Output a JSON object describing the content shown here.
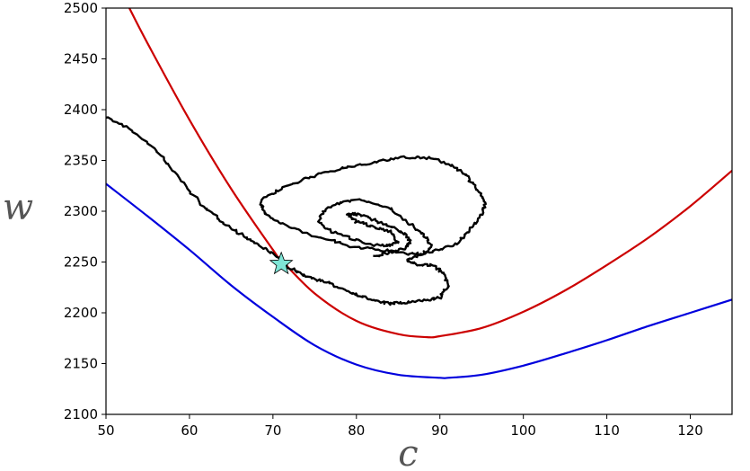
{
  "chart_data": {
    "type": "line",
    "title": "",
    "xlabel": "c",
    "ylabel": "w",
    "xlim": [
      50,
      125
    ],
    "ylim": [
      2100,
      2500
    ],
    "xticks": [
      "50",
      "60",
      "70",
      "80",
      "90",
      "100",
      "110",
      "120"
    ],
    "yticks": [
      "2100",
      "2150",
      "2200",
      "2250",
      "2300",
      "2350",
      "2400",
      "2450",
      "2500"
    ],
    "grid": false,
    "legend": "none",
    "series": [
      {
        "color": "#cc0000",
        "x": [
          52.8,
          55,
          60,
          65,
          70,
          71,
          75,
          80,
          85,
          88.5,
          90,
          95,
          100,
          105,
          110,
          115,
          120,
          125
        ],
        "y": [
          2500,
          2465,
          2390,
          2322,
          2262,
          2252,
          2219,
          2192,
          2179,
          2176,
          2177,
          2185,
          2201,
          2222,
          2247,
          2274,
          2305,
          2340
        ]
      },
      {
        "color": "#0000dd",
        "x": [
          50,
          55,
          60,
          65,
          70,
          75,
          80,
          85,
          90,
          91,
          95,
          100,
          105,
          110,
          115,
          120,
          125
        ],
        "y": [
          2327,
          2295,
          2262,
          2227,
          2196,
          2168,
          2149,
          2139,
          2136,
          2136,
          2139,
          2148,
          2160,
          2173,
          2187,
          2200,
          2213
        ]
      },
      {
        "color": "#000000",
        "x": [
          50,
          53,
          56,
          58,
          60,
          62,
          64,
          66,
          68,
          70,
          72,
          74,
          76,
          78,
          80,
          82,
          84,
          86,
          88,
          90,
          91,
          90.5,
          89,
          87,
          86,
          88,
          90,
          92,
          93.5,
          95,
          95.5,
          94.5,
          93,
          91,
          89,
          86,
          83,
          80,
          77,
          74,
          71,
          68.5,
          69,
          71,
          74,
          77,
          80,
          83,
          86,
          88,
          89,
          88,
          86,
          84,
          81,
          78,
          76,
          75.5,
          77,
          79.5,
          82,
          84,
          85,
          84,
          82,
          80,
          79,
          80.5,
          82.5,
          84.5,
          86,
          86.5,
          86,
          84,
          82
        ],
        "y": [
          2393,
          2380,
          2360,
          2340,
          2320,
          2302,
          2290,
          2278,
          2268,
          2258,
          2244,
          2236,
          2231,
          2225,
          2218,
          2212,
          2209,
          2210,
          2212,
          2215,
          2226,
          2239,
          2247,
          2248,
          2252,
          2258,
          2262,
          2268,
          2281,
          2297,
          2308,
          2322,
          2336,
          2347,
          2352,
          2353,
          2350,
          2345,
          2340,
          2332,
          2322,
          2310,
          2298,
          2288,
          2278,
          2271,
          2264,
          2262,
          2258,
          2258,
          2266,
          2278,
          2290,
          2303,
          2311,
          2309,
          2300,
          2290,
          2280,
          2273,
          2267,
          2266,
          2270,
          2280,
          2285,
          2290,
          2297,
          2297,
          2290,
          2284,
          2276,
          2270,
          2264,
          2259,
          2256
        ]
      }
    ],
    "marker": {
      "shape": "star",
      "x": 71,
      "y": 2248,
      "color": "#7fe5d6"
    }
  }
}
